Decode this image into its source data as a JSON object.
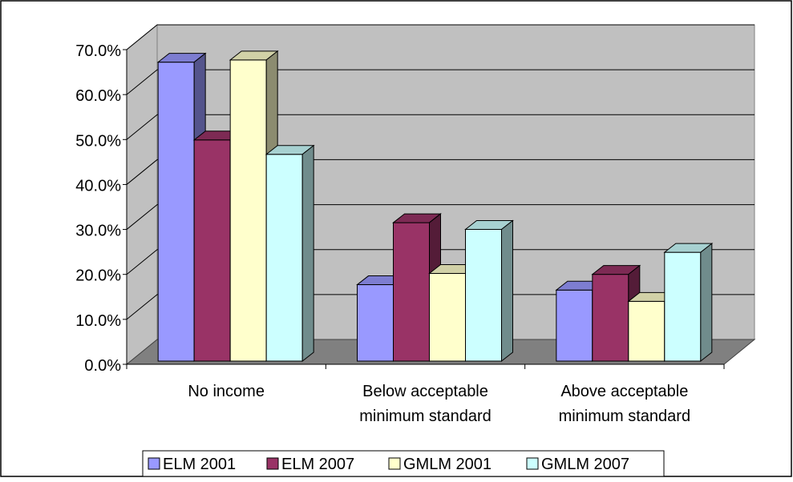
{
  "chart_data": {
    "type": "bar",
    "style": "3d-clustered-column",
    "categories": [
      "No income",
      "Below acceptable minimum standard",
      "Above acceptable minimum standard"
    ],
    "category_label_lines": [
      [
        "No income"
      ],
      [
        "Below acceptable",
        "minimum standard"
      ],
      [
        "Above acceptable",
        "minimum standard"
      ]
    ],
    "series": [
      {
        "name": "ELM 2001",
        "values": [
          66.5,
          17.0,
          15.8
        ],
        "color": "#9999ff"
      },
      {
        "name": "ELM 2007",
        "values": [
          49.2,
          30.8,
          19.3
        ],
        "color": "#993366"
      },
      {
        "name": "GMLM 2001",
        "values": [
          67.0,
          19.5,
          13.3
        ],
        "color": "#ffffcc"
      },
      {
        "name": "GMLM 2007",
        "values": [
          46.0,
          29.3,
          24.2
        ],
        "color": "#ccffff"
      }
    ],
    "yticks": [
      "0.0%",
      "10.0%",
      "20.0%",
      "30.0%",
      "40.0%",
      "50.0%",
      "60.0%",
      "70.0%"
    ],
    "ylim": [
      0,
      70
    ],
    "title": "",
    "xlabel": "",
    "ylabel": "",
    "grid": true,
    "legend_position": "bottom",
    "wall_color": "#c0c0c0",
    "floor_color": "#808080"
  }
}
